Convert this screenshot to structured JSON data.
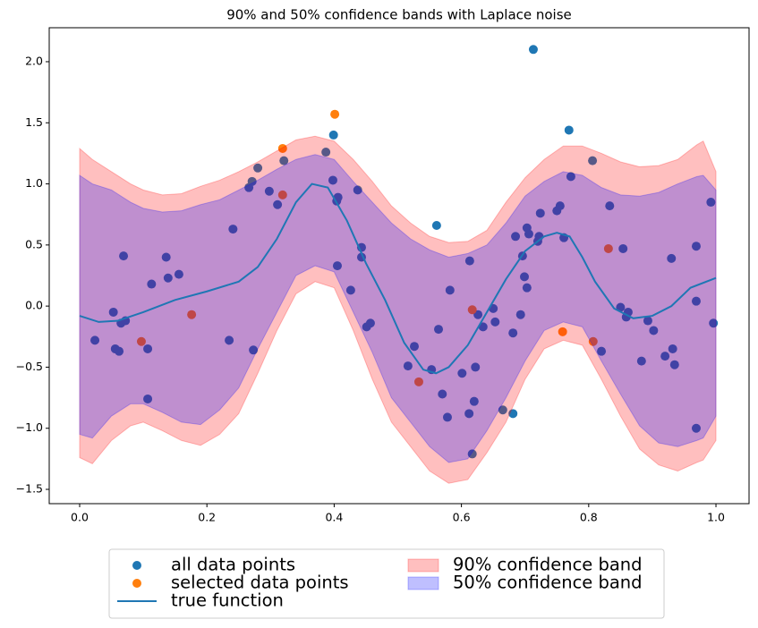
{
  "chart_data": {
    "type": "scatter",
    "title": "90% and 50% confidence bands with Laplace noise",
    "xlim": [
      -0.0478,
      1.052
    ],
    "ylim": [
      -1.617,
      2.278
    ],
    "xticks": [
      {
        "value": 0,
        "label": "0.0"
      },
      {
        "value": 0.2,
        "label": "0.2"
      },
      {
        "value": 0.4,
        "label": "0.4"
      },
      {
        "value": 0.6,
        "label": "0.6"
      },
      {
        "value": 0.8,
        "label": "0.8"
      },
      {
        "value": 1,
        "label": "1.0"
      }
    ],
    "yticks": [
      {
        "value": -1.5,
        "label": "−1.5"
      },
      {
        "value": -1,
        "label": "−1.0"
      },
      {
        "value": -0.5,
        "label": "−0.5"
      },
      {
        "value": 0,
        "label": "0.0"
      },
      {
        "value": 0.5,
        "label": "0.5"
      },
      {
        "value": 1,
        "label": "1.0"
      },
      {
        "value": 1.5,
        "label": "1.5"
      },
      {
        "value": 2,
        "label": "2.0"
      }
    ],
    "grid": false,
    "legend": "outside lower center",
    "series": [
      {
        "name": "all data points",
        "kind": "scatter",
        "color": "#1f77b4",
        "x": [
          0.024,
          0.053,
          0.056,
          0.062,
          0.065,
          0.072,
          0.069,
          0.107,
          0.107,
          0.113,
          0.136,
          0.139,
          0.156,
          0.235,
          0.241,
          0.266,
          0.271,
          0.273,
          0.28,
          0.298,
          0.311,
          0.321,
          0.387,
          0.399,
          0.398,
          0.404,
          0.406,
          0.405,
          0.426,
          0.437,
          0.443,
          0.443,
          0.451,
          0.457,
          0.516,
          0.526,
          0.553,
          0.561,
          0.564,
          0.57,
          0.578,
          0.582,
          0.601,
          0.613,
          0.612,
          0.617,
          0.62,
          0.622,
          0.626,
          0.634,
          0.65,
          0.653,
          0.665,
          0.681,
          0.681,
          0.685,
          0.693,
          0.696,
          0.699,
          0.703,
          0.703,
          0.706,
          0.713,
          0.72,
          0.722,
          0.724,
          0.75,
          0.755,
          0.761,
          0.769,
          0.772,
          0.806,
          0.82,
          0.833,
          0.85,
          0.854,
          0.859,
          0.862,
          0.883,
          0.893,
          0.902,
          0.92,
          0.93,
          0.932,
          0.935,
          0.969,
          0.969,
          0.969,
          0.992,
          0.996
        ],
        "values": [
          -0.28,
          -0.05,
          -0.35,
          -0.37,
          -0.14,
          -0.12,
          0.41,
          -0.76,
          -0.35,
          0.18,
          0.4,
          0.23,
          0.26,
          -0.28,
          0.63,
          0.97,
          1.02,
          -0.36,
          1.13,
          0.94,
          0.83,
          1.19,
          1.26,
          1.4,
          1.03,
          0.86,
          0.89,
          0.33,
          0.13,
          0.95,
          0.48,
          0.4,
          -0.17,
          -0.14,
          -0.49,
          -0.33,
          -0.52,
          0.66,
          -0.19,
          -0.72,
          -0.91,
          0.13,
          -0.55,
          0.37,
          -0.88,
          -1.21,
          -0.78,
          -0.5,
          -0.07,
          -0.17,
          -0.02,
          -0.13,
          -0.85,
          -0.88,
          -0.22,
          0.57,
          -0.07,
          0.41,
          0.24,
          0.15,
          0.64,
          0.59,
          2.1,
          0.53,
          0.57,
          0.76,
          0.78,
          0.82,
          0.56,
          1.44,
          1.06,
          1.19,
          -0.37,
          0.82,
          -0.01,
          0.47,
          -0.09,
          -0.05,
          -0.45,
          -0.12,
          -0.2,
          -0.41,
          0.39,
          -0.35,
          -0.48,
          -1.0,
          0.49,
          0.04,
          0.85,
          -0.14
        ]
      },
      {
        "name": "selected data points",
        "kind": "scatter",
        "color": "#ff7f0e",
        "x": [
          0.097,
          0.176,
          0.319,
          0.319,
          0.401,
          0.533,
          0.617,
          0.759,
          0.807,
          0.831
        ],
        "values": [
          -0.29,
          -0.07,
          1.29,
          0.91,
          1.57,
          -0.62,
          -0.03,
          -0.21,
          -0.29,
          0.47
        ]
      },
      {
        "name": "true function",
        "kind": "line",
        "color": "#1f77b4",
        "x": [
          0,
          0.03,
          0.06,
          0.1,
          0.15,
          0.2,
          0.25,
          0.28,
          0.31,
          0.34,
          0.365,
          0.39,
          0.42,
          0.45,
          0.48,
          0.51,
          0.54,
          0.56,
          0.58,
          0.61,
          0.64,
          0.67,
          0.7,
          0.73,
          0.75,
          0.77,
          0.79,
          0.81,
          0.84,
          0.87,
          0.9,
          0.93,
          0.96,
          1.0
        ],
        "values": [
          -0.08,
          -0.13,
          -0.12,
          -0.05,
          0.05,
          0.12,
          0.2,
          0.32,
          0.55,
          0.85,
          1.0,
          0.97,
          0.7,
          0.35,
          0.05,
          -0.3,
          -0.52,
          -0.55,
          -0.5,
          -0.32,
          -0.05,
          0.22,
          0.45,
          0.57,
          0.6,
          0.57,
          0.4,
          0.2,
          -0.02,
          -0.1,
          -0.08,
          0,
          0.15,
          0.23
        ]
      }
    ],
    "bands": [
      {
        "name": "90% confidence band",
        "color": "#ff0000",
        "opacity": 0.25,
        "x": [
          0,
          0.02,
          0.05,
          0.08,
          0.1,
          0.13,
          0.16,
          0.19,
          0.22,
          0.25,
          0.28,
          0.31,
          0.34,
          0.37,
          0.4,
          0.43,
          0.46,
          0.49,
          0.52,
          0.55,
          0.58,
          0.61,
          0.64,
          0.67,
          0.7,
          0.73,
          0.76,
          0.79,
          0.82,
          0.85,
          0.88,
          0.91,
          0.94,
          0.97,
          0.98,
          1.0
        ],
        "upper": [
          1.29,
          1.2,
          1.1,
          1.0,
          0.95,
          0.91,
          0.92,
          0.98,
          1.03,
          1.1,
          1.18,
          1.27,
          1.36,
          1.39,
          1.35,
          1.2,
          1.02,
          0.82,
          0.68,
          0.57,
          0.52,
          0.53,
          0.62,
          0.85,
          1.05,
          1.2,
          1.31,
          1.31,
          1.25,
          1.18,
          1.14,
          1.15,
          1.2,
          1.32,
          1.35,
          1.1
        ],
        "lower": [
          -1.24,
          -1.29,
          -1.1,
          -0.98,
          -0.95,
          -1.02,
          -1.1,
          -1.14,
          -1.05,
          -0.88,
          -0.55,
          -0.2,
          0.1,
          0.2,
          0.15,
          -0.2,
          -0.6,
          -0.95,
          -1.15,
          -1.35,
          -1.45,
          -1.42,
          -1.2,
          -0.95,
          -0.6,
          -0.35,
          -0.28,
          -0.32,
          -0.6,
          -0.9,
          -1.17,
          -1.3,
          -1.35,
          -1.28,
          -1.26,
          -1.1
        ]
      },
      {
        "name": "50% confidence band",
        "color": "#0000ff",
        "opacity": 0.25,
        "x": [
          0,
          0.02,
          0.05,
          0.08,
          0.1,
          0.13,
          0.16,
          0.19,
          0.22,
          0.25,
          0.28,
          0.31,
          0.34,
          0.37,
          0.4,
          0.43,
          0.46,
          0.49,
          0.52,
          0.55,
          0.58,
          0.61,
          0.64,
          0.67,
          0.7,
          0.73,
          0.76,
          0.79,
          0.82,
          0.85,
          0.88,
          0.91,
          0.94,
          0.97,
          0.98,
          1.0
        ],
        "upper": [
          1.07,
          1.0,
          0.95,
          0.85,
          0.8,
          0.77,
          0.78,
          0.83,
          0.87,
          0.95,
          1.03,
          1.12,
          1.2,
          1.24,
          1.2,
          1.02,
          0.85,
          0.68,
          0.55,
          0.46,
          0.4,
          0.43,
          0.5,
          0.68,
          0.9,
          1.02,
          1.1,
          1.07,
          0.97,
          0.91,
          0.9,
          0.93,
          1.0,
          1.06,
          1.07,
          0.95
        ],
        "lower": [
          -1.05,
          -1.08,
          -0.9,
          -0.8,
          -0.8,
          -0.87,
          -0.95,
          -0.97,
          -0.85,
          -0.67,
          -0.35,
          -0.05,
          0.25,
          0.33,
          0.28,
          -0.05,
          -0.38,
          -0.75,
          -0.95,
          -1.15,
          -1.28,
          -1.25,
          -1.02,
          -0.75,
          -0.45,
          -0.2,
          -0.13,
          -0.17,
          -0.45,
          -0.72,
          -0.98,
          -1.12,
          -1.15,
          -1.1,
          -1.08,
          -0.9
        ]
      }
    ]
  }
}
